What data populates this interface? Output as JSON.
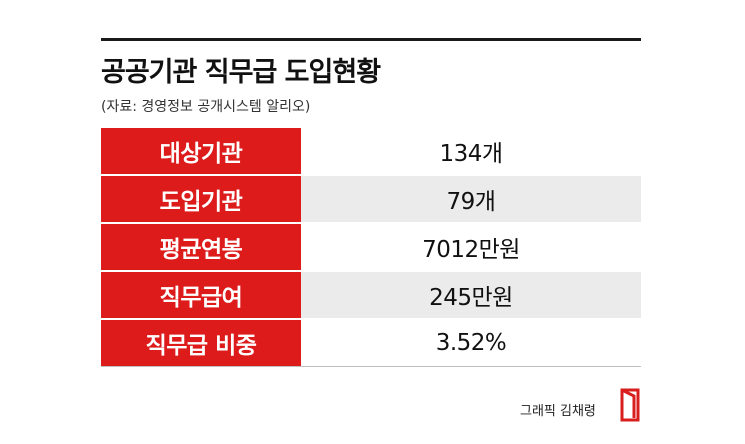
{
  "title": "공공기관 직무급 도입현황",
  "source": "(자료: 경영정보 공개시스템 알리오)",
  "table": {
    "rows": [
      {
        "label": "대상기관",
        "value": "134개"
      },
      {
        "label": "도입기관",
        "value": "79개"
      },
      {
        "label": "평균연봉",
        "value": "7012만원"
      },
      {
        "label": "직무급여",
        "value": "245만원"
      },
      {
        "label": "직무급 비중",
        "value": "3.52%"
      }
    ]
  },
  "credit": "그래픽 김채령",
  "colors": {
    "label_background": "#dd1b1b",
    "alt_row_background": "#ebebeb",
    "logo": "#d91e1e"
  },
  "icons": {
    "logo": "publisher-logo-icon"
  }
}
